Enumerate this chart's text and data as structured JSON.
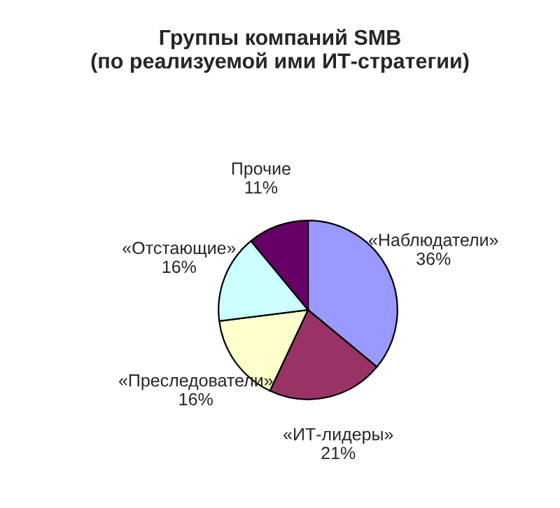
{
  "chart_data": {
    "type": "pie",
    "title": "Группы компаний SMB\n(по реализуемой ими ИТ-стратегии)",
    "categories": [
      "«Наблюдатели»",
      "«ИТ-лидеры»",
      "«Преследователи»",
      "«Отстающие»",
      "Прочие"
    ],
    "values": [
      36,
      21,
      16,
      16,
      11
    ],
    "colors": [
      "#9999ff",
      "#993366",
      "#ffffcc",
      "#ccffff",
      "#660066"
    ],
    "value_labels": [
      "36%",
      "21%",
      "16%",
      "16%",
      "11%"
    ]
  }
}
